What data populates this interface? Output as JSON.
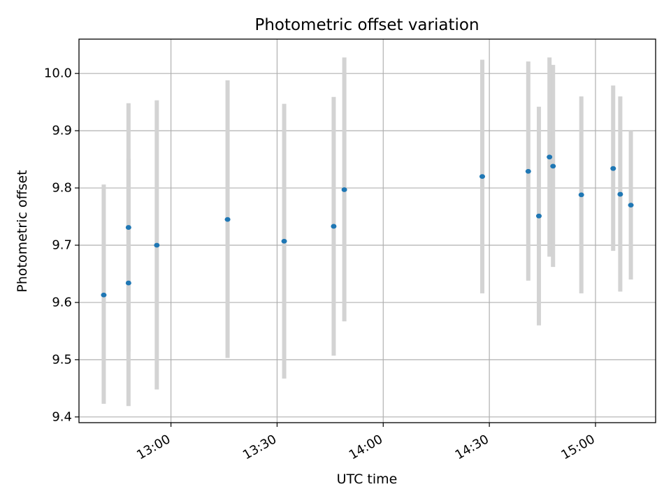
{
  "chart_data": {
    "type": "scatter",
    "title": "Photometric offset variation",
    "xlabel": "UTC time",
    "ylabel": "Photometric offset",
    "xlim": [
      "12:34",
      "15:17"
    ],
    "ylim": [
      9.39,
      10.06
    ],
    "grid": true,
    "x_ticks": [
      "13:00",
      "13:30",
      "14:00",
      "14:30",
      "15:00"
    ],
    "y_ticks": [
      "9.4",
      "9.5",
      "9.6",
      "9.7",
      "9.8",
      "9.9",
      "10.0"
    ],
    "point_color": "#1f77b4",
    "errorbar_color": "#d3d3d3",
    "series": [
      {
        "points": [
          {
            "x": "12:41",
            "y": 9.613,
            "yerr_low": 9.423,
            "yerr_high": 9.806
          },
          {
            "x": "12:48",
            "y": 9.731,
            "yerr_low": 9.514,
            "yerr_high": 9.948
          },
          {
            "x": "12:48",
            "y": 9.634,
            "yerr_low": 9.419,
            "yerr_high": 9.851
          },
          {
            "x": "12:56",
            "y": 9.7,
            "yerr_low": 9.448,
            "yerr_high": 9.953
          },
          {
            "x": "13:16",
            "y": 9.745,
            "yerr_low": 9.503,
            "yerr_high": 9.988
          },
          {
            "x": "13:32",
            "y": 9.707,
            "yerr_low": 9.467,
            "yerr_high": 9.947
          },
          {
            "x": "13:46",
            "y": 9.733,
            "yerr_low": 9.507,
            "yerr_high": 9.959
          },
          {
            "x": "13:49",
            "y": 9.797,
            "yerr_low": 9.567,
            "yerr_high": 10.028
          },
          {
            "x": "14:28",
            "y": 9.82,
            "yerr_low": 9.616,
            "yerr_high": 10.024
          },
          {
            "x": "14:41",
            "y": 9.829,
            "yerr_low": 9.638,
            "yerr_high": 10.021
          },
          {
            "x": "14:44",
            "y": 9.751,
            "yerr_low": 9.56,
            "yerr_high": 9.942
          },
          {
            "x": "14:47",
            "y": 9.854,
            "yerr_low": 9.68,
            "yerr_high": 10.028
          },
          {
            "x": "14:48",
            "y": 9.838,
            "yerr_low": 9.662,
            "yerr_high": 10.015
          },
          {
            "x": "14:56",
            "y": 9.788,
            "yerr_low": 9.616,
            "yerr_high": 9.96
          },
          {
            "x": "15:05",
            "y": 9.834,
            "yerr_low": 9.69,
            "yerr_high": 9.979
          },
          {
            "x": "15:07",
            "y": 9.789,
            "yerr_low": 9.619,
            "yerr_high": 9.96
          },
          {
            "x": "15:10",
            "y": 9.77,
            "yerr_low": 9.64,
            "yerr_high": 9.9
          }
        ]
      }
    ]
  }
}
